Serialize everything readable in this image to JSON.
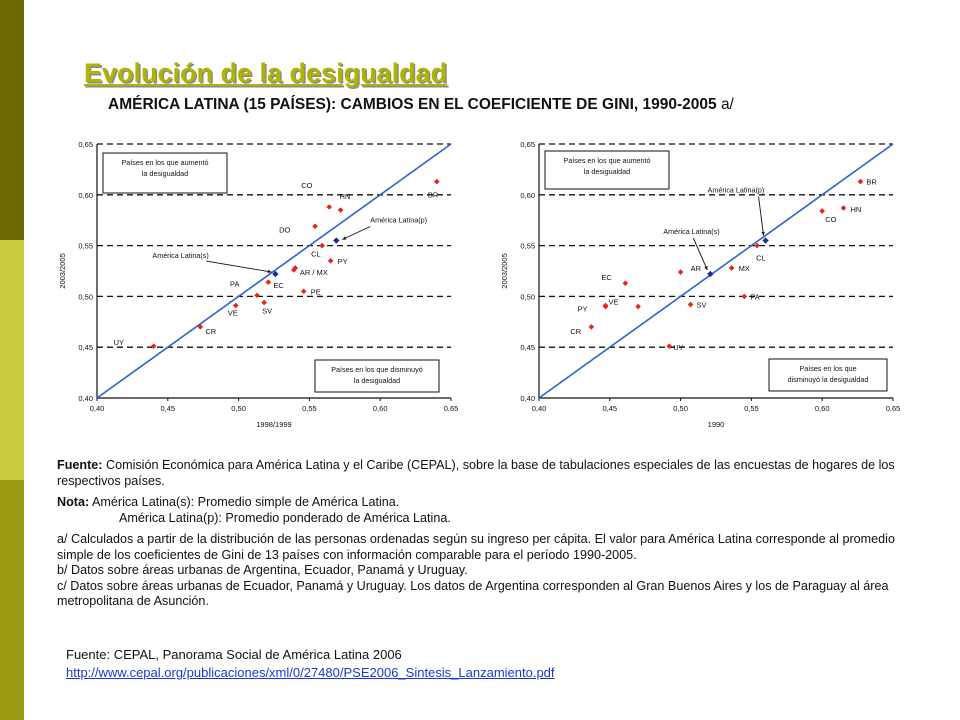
{
  "slide": {
    "title": "Evolución de la desigualdad",
    "heading": "AMÉRICA LATINA (15 PAÍSES): CAMBIOS EN EL COEFICIENTE DE GINI, 1990-2005",
    "heading_suffix": "a/",
    "band_colors": [
      "#6b6b00",
      "#c8cc3a",
      "#9c9c14"
    ]
  },
  "chart_data": [
    {
      "type": "scatter",
      "title": "",
      "xlabel": "1998/1999",
      "ylabel": "2003/2005",
      "xlim": [
        0.4,
        0.65
      ],
      "ylim": [
        0.4,
        0.65
      ],
      "x_ticks": [
        "0,40",
        "0,45",
        "0,50",
        "0,55",
        "0,60",
        "0,65"
      ],
      "y_ticks": [
        "0,65",
        "0,60",
        "0,55",
        "0,50",
        "0,45",
        "0,40"
      ],
      "dashed_lines_y": [
        0.65,
        0.6,
        0.55,
        0.5,
        0.45
      ],
      "reference_line": "y = x",
      "box_top": [
        "Países en los que aumentó",
        "la desigualdad"
      ],
      "box_bottom": [
        "Países en los que disminuyó",
        "la desigualdad"
      ],
      "points": [
        {
          "label": "UY",
          "x": 0.44,
          "y": 0.451,
          "color": "#e8231d"
        },
        {
          "label": "CR",
          "x": 0.473,
          "y": 0.47,
          "color": "#e8231d"
        },
        {
          "label": "VE",
          "x": 0.498,
          "y": 0.491,
          "color": "#e8231d"
        },
        {
          "label": "SV",
          "x": 0.518,
          "y": 0.494,
          "color": "#e8231d"
        },
        {
          "label": "PA",
          "x": 0.513,
          "y": 0.501,
          "color": "#e8231d"
        },
        {
          "label": "EC",
          "x": 0.521,
          "y": 0.514,
          "color": "#e8231d"
        },
        {
          "label": "AR / MX",
          "x": 0.539,
          "y": 0.526,
          "color": "#e8231d"
        },
        {
          "label": "",
          "x": 0.54,
          "y": 0.528,
          "color": "#e8231d"
        },
        {
          "label": "PE",
          "x": 0.546,
          "y": 0.505,
          "color": "#e8231d"
        },
        {
          "label": "CL",
          "x": 0.559,
          "y": 0.55,
          "color": "#e8231d"
        },
        {
          "label": "DO",
          "x": 0.554,
          "y": 0.569,
          "color": "#e8231d"
        },
        {
          "label": "PY",
          "x": 0.565,
          "y": 0.535,
          "color": "#e8231d"
        },
        {
          "label": "CO",
          "x": 0.564,
          "y": 0.588,
          "color": "#e8231d"
        },
        {
          "label": "HN",
          "x": 0.572,
          "y": 0.585,
          "color": "#e8231d"
        },
        {
          "label": "BR",
          "x": 0.64,
          "y": 0.613,
          "color": "#e8231d"
        },
        {
          "label": "América Latina(s)",
          "x": 0.526,
          "y": 0.522,
          "color": "#1c2f8c"
        },
        {
          "label": "América Latina(p)",
          "x": 0.569,
          "y": 0.555,
          "color": "#1c2f8c"
        }
      ]
    },
    {
      "type": "scatter",
      "title": "",
      "xlabel": "1990",
      "ylabel": "2003/2005",
      "xlim": [
        0.4,
        0.65
      ],
      "ylim": [
        0.4,
        0.65
      ],
      "x_ticks": [
        "0,40",
        "0,45",
        "0,50",
        "0,55",
        "0,60",
        "0,65"
      ],
      "y_ticks": [
        "0,65",
        "0,60",
        "0,55",
        "0,50",
        "0,45",
        "0,40"
      ],
      "dashed_lines_y": [
        0.65,
        0.6,
        0.55,
        0.5,
        0.45
      ],
      "reference_line": "y = x",
      "box_top": [
        "Países en los que aumentó",
        "la desigualdad"
      ],
      "box_bottom": [
        "Países en los que",
        "disminuyó la desigualdad"
      ],
      "points": [
        {
          "label": "CR",
          "x": 0.437,
          "y": 0.47,
          "color": "#e8231d"
        },
        {
          "label": "PY",
          "x": 0.447,
          "y": 0.49,
          "color": "#e8231d"
        },
        {
          "label": "VE",
          "x": 0.447,
          "y": 0.491,
          "color": "#e8231d"
        },
        {
          "label": "EC",
          "x": 0.461,
          "y": 0.513,
          "color": "#e8231d"
        },
        {
          "label": "",
          "x": 0.47,
          "y": 0.49,
          "color": "#e8231d"
        },
        {
          "label": "UY",
          "x": 0.492,
          "y": 0.451,
          "color": "#e8231d"
        },
        {
          "label": "AR",
          "x": 0.5,
          "y": 0.524,
          "color": "#e8231d"
        },
        {
          "label": "SV",
          "x": 0.507,
          "y": 0.492,
          "color": "#e8231d"
        },
        {
          "label": "MX",
          "x": 0.536,
          "y": 0.528,
          "color": "#e8231d"
        },
        {
          "label": "PA",
          "x": 0.545,
          "y": 0.5,
          "color": "#e8231d"
        },
        {
          "label": "CL",
          "x": 0.554,
          "y": 0.55,
          "color": "#e8231d"
        },
        {
          "label": "CO",
          "x": 0.6,
          "y": 0.584,
          "color": "#e8231d"
        },
        {
          "label": "HN",
          "x": 0.615,
          "y": 0.587,
          "color": "#e8231d"
        },
        {
          "label": "BR",
          "x": 0.627,
          "y": 0.613,
          "color": "#e8231d"
        },
        {
          "label": "América Latina(s)",
          "x": 0.521,
          "y": 0.522,
          "color": "#1c2f8c"
        },
        {
          "label": "América Latina(p)",
          "x": 0.56,
          "y": 0.555,
          "color": "#1c2f8c"
        }
      ]
    }
  ],
  "notes": {
    "source_label": "Fuente:",
    "source_text": "Comisión Económica para América Latina y el Caribe (CEPAL), sobre la base de tabulaciones especiales de las encuestas de hogares de los respectivos países.",
    "nota_label": "Nota:",
    "nota_line1": "América Latina(s): Promedio simple de América Latina.",
    "nota_line2": "América Latina(p): Promedio ponderado de América Latina.",
    "note_a": "a/ Calculados a partir de la distribución de las personas ordenadas según su ingreso per cápita. El valor para América Latina corresponde al promedio simple de los coeficientes de Gini de 13 países con información comparable para el período 1990-2005.",
    "note_b": "b/ Datos sobre áreas urbanas de Argentina, Ecuador, Panamá y Uruguay.",
    "note_c": "c/ Datos sobre áreas urbanas de Ecuador, Panamá y Uruguay. Los datos de Argentina corresponden al Gran Buenos Aires y los de Paraguay al área metropolitana de Asunción."
  },
  "footer": {
    "source": "Fuente: CEPAL, Panorama Social de América Latina 2006",
    "link": "http://www.cepal.org/publicaciones/xml/0/27480/PSE2006_Sintesis_Lanzamiento.pdf"
  }
}
